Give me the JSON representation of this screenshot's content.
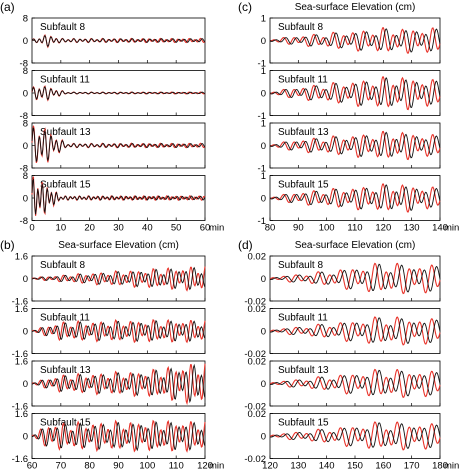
{
  "figure_title": "Sea-surface Elevation (cm)",
  "x_unit_label": "min",
  "colors": {
    "observed": "#e8332a",
    "synthetic": "#111111",
    "frame": "#000000"
  },
  "chart_data": [
    {
      "id": "a",
      "panel_label": "(a)",
      "title": "",
      "type": "line",
      "xlim": [
        0,
        60
      ],
      "x_ticks": [
        0,
        10,
        20,
        30,
        40,
        50,
        60
      ],
      "x_tick_labels": [
        "0",
        "10",
        "20",
        "30",
        "40",
        "50",
        "60"
      ],
      "show_x_tick_labels": true,
      "y_ticks": [
        -8,
        0,
        8
      ],
      "y_tick_labels": [
        "-8",
        "0",
        "8"
      ],
      "ylim": [
        -8,
        8
      ],
      "subplots": [
        {
          "label": "Subfault  8",
          "series": [
            {
              "shape": "packet",
              "values": [
                [
                  3,
                  0.6
                ],
                [
                  5,
                  1.0
                ],
                [
                  10,
                  0.3
                ]
              ],
              "amp": 2.2,
              "period": 2.0
            }
          ]
        },
        {
          "label": "Subfault  11",
          "series": [
            {
              "shape": "packet",
              "values": [
                [
                  2,
                  1.0
                ],
                [
                  5,
                  0.8
                ],
                [
                  12,
                  0.1
                ]
              ],
              "amp": 3.0,
              "period": 2.0
            }
          ]
        },
        {
          "label": "Subfault  13",
          "series": [
            {
              "shape": "packet",
              "values": [
                [
                  1,
                  1.0
                ],
                [
                  3,
                  1.0
                ],
                [
                  12,
                  0.1
                ]
              ],
              "amp": 7.0,
              "period": 2.0
            }
          ]
        },
        {
          "label": "Subfault  15",
          "series": [
            {
              "shape": "packet",
              "values": [
                [
                  0.5,
                  1.0
                ],
                [
                  2,
                  1.0
                ],
                [
                  10,
                  0.1
                ]
              ],
              "amp": 7.0,
              "period": 1.6
            }
          ]
        }
      ]
    },
    {
      "id": "b",
      "panel_label": "(b)",
      "title": "Sea-surface Elevation (cm)",
      "type": "line",
      "xlim": [
        60,
        120
      ],
      "x_ticks": [
        60,
        70,
        80,
        90,
        100,
        110,
        120
      ],
      "x_tick_labels": [
        "60",
        "70",
        "80",
        "90",
        "100",
        "110",
        "120"
      ],
      "show_x_tick_labels": true,
      "y_ticks": [
        -1.6,
        0,
        1.6
      ],
      "y_tick_labels": [
        "-1.6",
        "0",
        "1.6"
      ],
      "ylim": [
        -1.6,
        1.6
      ],
      "subplots": [
        {
          "label": "Subfault  8",
          "series": [
            {
              "shape": "packet",
              "values": [
                [
                  60,
                  0.05
                ],
                [
                  80,
                  0.3
                ],
                [
                  110,
                  0.6
                ],
                [
                  120,
                  0.7
                ]
              ],
              "amp": 1.2,
              "period": 2.6
            }
          ]
        },
        {
          "label": "Subfault  11",
          "series": [
            {
              "shape": "packet",
              "values": [
                [
                  60,
                  0.05
                ],
                [
                  70,
                  0.5
                ],
                [
                  100,
                  0.6
                ],
                [
                  120,
                  0.6
                ]
              ],
              "amp": 1.2,
              "period": 2.6
            }
          ]
        },
        {
          "label": "Subfault  13",
          "series": [
            {
              "shape": "packet",
              "values": [
                [
                  60,
                  0.05
                ],
                [
                  70,
                  0.4
                ],
                [
                  100,
                  0.6
                ],
                [
                  118,
                  1.0
                ]
              ],
              "amp": 1.4,
              "period": 2.6
            }
          ]
        },
        {
          "label": "Subfault  15",
          "series": [
            {
              "shape": "packet",
              "values": [
                [
                  60,
                  0.05
                ],
                [
                  66,
                  0.6
                ],
                [
                  100,
                  0.7
                ],
                [
                  120,
                  0.7
                ]
              ],
              "amp": 1.4,
              "period": 2.6
            }
          ]
        }
      ]
    },
    {
      "id": "c",
      "panel_label": "(c)",
      "title": "Sea-surface Elevation (cm)",
      "type": "line",
      "xlim": [
        80,
        140
      ],
      "x_ticks": [
        80,
        90,
        100,
        110,
        120,
        130,
        140
      ],
      "x_tick_labels": [
        "80",
        "90",
        "100",
        "110",
        "120",
        "130",
        "140"
      ],
      "show_x_tick_labels": true,
      "y_ticks": [
        -1,
        0,
        1
      ],
      "y_tick_labels": [
        "-1",
        "0",
        "1"
      ],
      "ylim": [
        -1,
        1
      ],
      "subplots": [
        {
          "label": "Subfault  8",
          "series": [
            {
              "shape": "packet",
              "values": [
                [
                  80,
                  0.05
                ],
                [
                  90,
                  0.2
                ],
                [
                  120,
                  0.5
                ],
                [
                  140,
                  0.5
                ]
              ],
              "amp": 1.0,
              "period": 3.5
            }
          ]
        },
        {
          "label": "Subfault  11",
          "series": [
            {
              "shape": "packet",
              "values": [
                [
                  80,
                  0.05
                ],
                [
                  90,
                  0.25
                ],
                [
                  125,
                  0.7
                ],
                [
                  140,
                  0.5
                ]
              ],
              "amp": 1.0,
              "period": 3.5
            }
          ]
        },
        {
          "label": "Subfault  13",
          "series": [
            {
              "shape": "packet",
              "values": [
                [
                  80,
                  0.05
                ],
                [
                  90,
                  0.25
                ],
                [
                  125,
                  0.6
                ],
                [
                  140,
                  0.4
                ]
              ],
              "amp": 1.0,
              "period": 3.5
            }
          ]
        },
        {
          "label": "Subfault  15",
          "series": [
            {
              "shape": "packet",
              "values": [
                [
                  80,
                  0.05
                ],
                [
                  90,
                  0.25
                ],
                [
                  125,
                  0.6
                ],
                [
                  140,
                  0.4
                ]
              ],
              "amp": 1.0,
              "period": 3.5
            }
          ]
        }
      ]
    },
    {
      "id": "d",
      "panel_label": "(d)",
      "title": "Sea-surface Elevation (cm)",
      "type": "line",
      "xlim": [
        120,
        180
      ],
      "x_ticks": [
        120,
        130,
        140,
        150,
        160,
        170,
        180
      ],
      "x_tick_labels": [
        "120",
        "130",
        "140",
        "150",
        "160",
        "170",
        "180"
      ],
      "show_x_tick_labels": true,
      "y_ticks": [
        -0.02,
        0,
        0.02
      ],
      "y_tick_labels": [
        "-0.02",
        "0",
        "0.02"
      ],
      "ylim": [
        -0.02,
        0.02
      ],
      "subplots": [
        {
          "label": "Subfault  8",
          "series": [
            {
              "shape": "packet",
              "values": [
                [
                  120,
                  0.05
                ],
                [
                  140,
                  0.3
                ],
                [
                  160,
                  0.65
                ],
                [
                  180,
                  0.55
                ]
              ],
              "amp": 0.02,
              "period": 4.0
            }
          ]
        },
        {
          "label": "Subfault  11",
          "series": [
            {
              "shape": "packet",
              "values": [
                [
                  120,
                  0.05
                ],
                [
                  140,
                  0.3
                ],
                [
                  160,
                  0.6
                ],
                [
                  180,
                  0.5
                ]
              ],
              "amp": 0.02,
              "period": 4.0
            }
          ]
        },
        {
          "label": "Subfault  13",
          "series": [
            {
              "shape": "packet",
              "values": [
                [
                  120,
                  0.05
                ],
                [
                  140,
                  0.3
                ],
                [
                  160,
                  0.6
                ],
                [
                  180,
                  0.5
                ]
              ],
              "amp": 0.02,
              "period": 4.0
            }
          ]
        },
        {
          "label": "Subfault  15",
          "series": [
            {
              "shape": "packet",
              "values": [
                [
                  120,
                  0.05
                ],
                [
                  140,
                  0.3
                ],
                [
                  160,
                  0.6
                ],
                [
                  180,
                  0.5
                ]
              ],
              "amp": 0.02,
              "period": 4.0
            }
          ]
        }
      ]
    }
  ]
}
